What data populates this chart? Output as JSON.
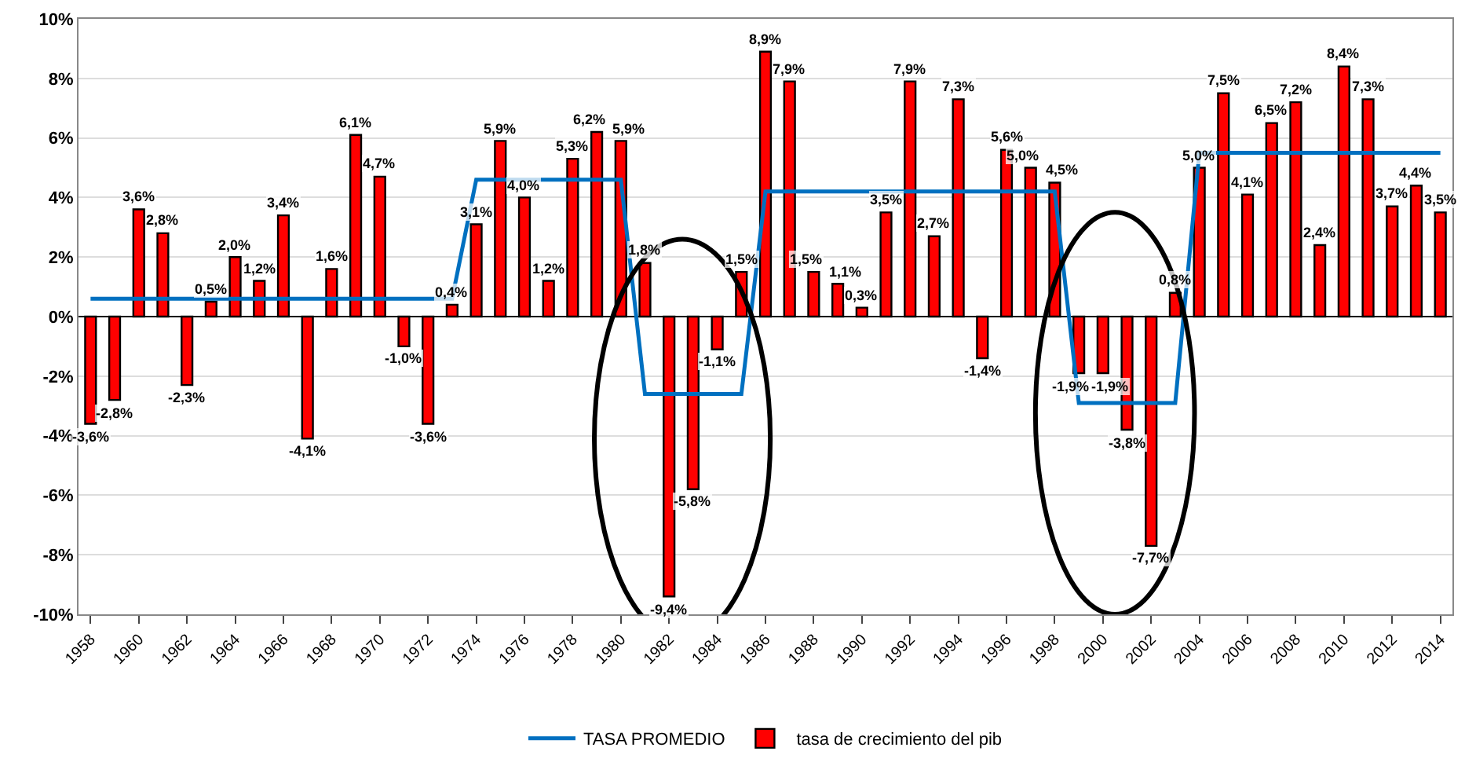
{
  "chart_data": {
    "type": "bar",
    "x": [
      1958,
      1959,
      1960,
      1961,
      1962,
      1963,
      1964,
      1965,
      1966,
      1967,
      1968,
      1969,
      1970,
      1971,
      1972,
      1973,
      1974,
      1975,
      1976,
      1977,
      1978,
      1979,
      1980,
      1981,
      1982,
      1983,
      1984,
      1985,
      1986,
      1987,
      1988,
      1989,
      1990,
      1991,
      1992,
      1993,
      1994,
      1995,
      1996,
      1997,
      1998,
      1999,
      2000,
      2001,
      2002,
      2003,
      2004,
      2005,
      2006,
      2007,
      2008,
      2009,
      2010,
      2011,
      2012,
      2013,
      2014
    ],
    "series": [
      {
        "name": "TASA PROMEDIO",
        "type": "line",
        "color": "#0070c0",
        "values": [
          0.6,
          0.6,
          0.6,
          0.6,
          0.6,
          0.6,
          0.6,
          0.6,
          0.6,
          0.6,
          0.6,
          0.6,
          0.6,
          0.6,
          0.6,
          0.6,
          4.6,
          4.6,
          4.6,
          4.6,
          4.6,
          4.6,
          4.6,
          -2.6,
          -2.6,
          -2.6,
          -2.6,
          -2.6,
          4.2,
          4.2,
          4.2,
          4.2,
          4.2,
          4.2,
          4.2,
          4.2,
          4.2,
          4.2,
          4.2,
          4.2,
          4.2,
          -2.9,
          -2.9,
          -2.9,
          -2.9,
          -2.9,
          5.5,
          5.5,
          5.5,
          5.5,
          5.5,
          5.5,
          5.5,
          5.5,
          5.5,
          5.5,
          5.5
        ]
      },
      {
        "name": "tasa de crecimiento del pib",
        "type": "bar",
        "color": "#ff0000",
        "values": [
          -3.6,
          -2.8,
          3.6,
          2.8,
          -2.3,
          0.5,
          2.0,
          1.2,
          3.4,
          -4.1,
          1.6,
          6.1,
          4.7,
          -1.0,
          -3.6,
          0.4,
          3.1,
          5.9,
          4.0,
          1.2,
          5.3,
          6.2,
          5.9,
          1.8,
          -9.4,
          -5.8,
          -1.1,
          1.5,
          8.9,
          7.9,
          1.5,
          1.1,
          0.3,
          3.5,
          7.9,
          2.7,
          7.3,
          -1.4,
          5.6,
          5.0,
          4.5,
          -1.9,
          -1.9,
          -3.8,
          -7.7,
          0.8,
          5.0,
          7.5,
          4.1,
          6.5,
          7.2,
          2.4,
          8.4,
          7.3,
          3.7,
          4.4,
          3.5
        ],
        "value_labels": [
          "-3,6%",
          "-2,8%",
          "3,6%",
          "2,8%",
          "-2,3%",
          "0,5%",
          "2,0%",
          "1,2%",
          "3,4%",
          "-4,1%",
          "1,6%",
          "6,1%",
          "4,7%",
          "-1,0%",
          "-3,6%",
          "0,4%",
          "3,1%",
          "5,9%",
          "4,0%",
          "1,2%",
          "5,3%",
          "6,2%",
          "5,9%",
          "1,8%",
          "-9,4%",
          "-5,8%",
          "-1,1%",
          "1,5%",
          "8,9%",
          "7,9%",
          "1,5%",
          "1,1%",
          "0,3%",
          "3,5%",
          "7,9%",
          "2,7%",
          "7,3%",
          "-1,4%",
          "5,6%",
          "5,0%",
          "4,5%",
          "-1,9%",
          "-1,9%",
          "-3,8%",
          "-7,7%",
          "0,8%",
          "5,0%",
          "7,5%",
          "4,1%",
          "6,5%",
          "7,2%",
          "2,4%",
          "8,4%",
          "7,3%",
          "3,7%",
          "4,4%",
          "3,5%"
        ]
      }
    ],
    "xlim": [
      1957.5,
      2014.5
    ],
    "xticks": [
      1958,
      1960,
      1962,
      1964,
      1966,
      1968,
      1970,
      1972,
      1974,
      1976,
      1978,
      1980,
      1982,
      1984,
      1986,
      1988,
      1990,
      1992,
      1994,
      1996,
      1998,
      2000,
      2002,
      2004,
      2006,
      2008,
      2010,
      2012,
      2014
    ],
    "ylim": [
      -10,
      10
    ],
    "yticks": [
      {
        "value": -10,
        "label": "-10%"
      },
      {
        "value": -8,
        "label": "-8%"
      },
      {
        "value": -6,
        "label": "-6%"
      },
      {
        "value": -4,
        "label": "-4%"
      },
      {
        "value": -2,
        "label": "-2%"
      },
      {
        "value": 0,
        "label": "0%"
      },
      {
        "value": 2,
        "label": "2%"
      },
      {
        "value": 4,
        "label": "4%"
      },
      {
        "value": 6,
        "label": "6%"
      },
      {
        "value": 8,
        "label": "8%"
      },
      {
        "value": 10,
        "label": "10%"
      }
    ],
    "grid": "y",
    "legend": "bottom"
  }
}
